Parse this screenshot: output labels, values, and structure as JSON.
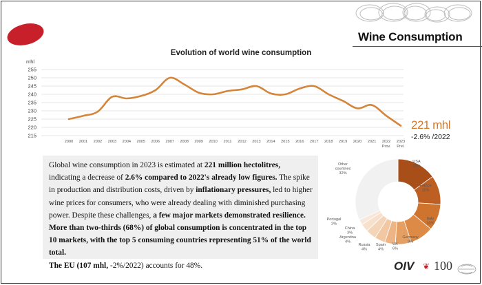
{
  "header": {
    "title": "Wine Consumption"
  },
  "chart_data": [
    {
      "type": "line",
      "title": "Evolution of world wine consumption",
      "ylabel": "mhl",
      "xlabel": "",
      "x": [
        "2000",
        "2001",
        "2002",
        "2003",
        "2004",
        "2005",
        "2006",
        "2007",
        "2008",
        "2009",
        "2010",
        "2011",
        "2012",
        "2013",
        "2014",
        "2015",
        "2016",
        "2017",
        "2018",
        "2019",
        "2020",
        "2021",
        "2022 Prov.",
        "2023 Prel."
      ],
      "series": [
        {
          "values": [
            225,
            227,
            229.5,
            238.5,
            237.5,
            239,
            242.5,
            250,
            246,
            241,
            240,
            242,
            243,
            245,
            240.5,
            240,
            243.5,
            245,
            240,
            236,
            231.5,
            233.5,
            227,
            221
          ]
        }
      ],
      "yticks": [
        215,
        220,
        225,
        230,
        235,
        240,
        245,
        250,
        255
      ],
      "ylim": [
        215,
        255
      ],
      "grid": true,
      "color": "#d4853a",
      "callout": {
        "value": "221 mhl",
        "change": "-2.6% /2022"
      }
    },
    {
      "type": "pie",
      "donut": true,
      "slices": [
        {
          "label": "USA",
          "value": 15,
          "color": "#a84f19"
        },
        {
          "label": "France",
          "value": 11,
          "color": "#bd5e22"
        },
        {
          "label": "Italy",
          "value": 10,
          "color": "#cf742f"
        },
        {
          "label": "Germany",
          "value": 9,
          "color": "#dd8a47"
        },
        {
          "label": "UK",
          "value": 6,
          "color": "#e69f63"
        },
        {
          "label": "Spain",
          "value": 4,
          "color": "#edb586"
        },
        {
          "label": "Russia",
          "value": 4,
          "color": "#f2c8a3"
        },
        {
          "label": "Argentina",
          "value": 4,
          "color": "#f5d5b8"
        },
        {
          "label": "China",
          "value": 3,
          "color": "#f7e0cc"
        },
        {
          "label": "Portugal",
          "value": 2,
          "color": "#f9e8da"
        },
        {
          "label": "Other countries",
          "value": 32,
          "color": "#f1f1f1"
        }
      ]
    }
  ],
  "description": {
    "p1_a": "Global wine consumption in 2023 is estimated at ",
    "p1_b": "221 million hectolitres,",
    "p1_c": " indicating a decrease of ",
    "p1_d": "2.6% compared to 2022's already low figures.",
    "p1_e": " The spike in production and distribution costs, driven by ",
    "p1_f": "inflationary pressures,",
    "p1_g": " led to higher wine prices for consumers, who were already dealing with diminished purchasing power. Despite these challenges, ",
    "p1_h": "a few major markets demonstrated resilience.",
    "p2": "More than two-thirds (68%) of global consumption is concentrated in the top 10 markets, with the top 5 consuming countries representing 51% of the world total.",
    "p3_a": "The EU (107 mhl,",
    "p3_b": " -2%/2022) accounts for 48%."
  },
  "footer": {
    "logo_text": "OIV",
    "logo_number": "100"
  }
}
